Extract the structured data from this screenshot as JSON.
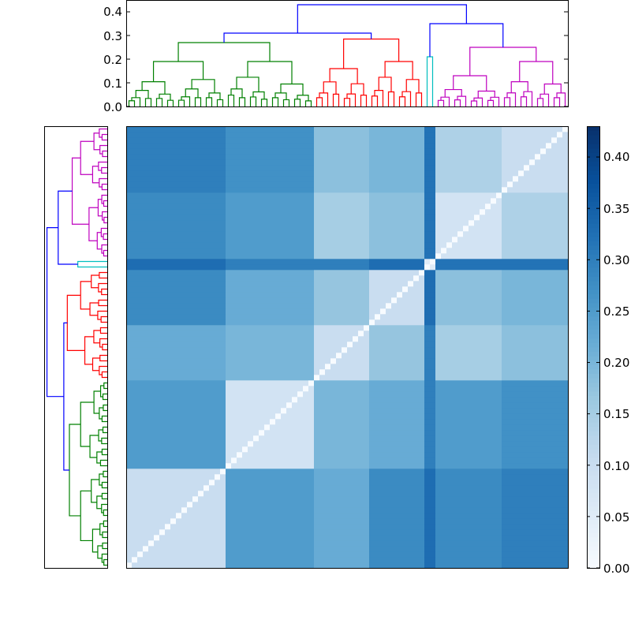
{
  "chart_data": {
    "type": "heatmap",
    "title": "",
    "colormap": "Blues",
    "value_range": [
      0.0,
      0.43
    ],
    "colorbar": {
      "ticks": [
        "0.00",
        "0.05",
        "0.10",
        "0.15",
        "0.20",
        "0.25",
        "0.30",
        "0.35",
        "0.40"
      ],
      "tick_values": [
        0,
        0.05,
        0.1,
        0.15,
        0.2,
        0.25,
        0.3,
        0.35,
        0.4
      ],
      "placement": "right"
    },
    "top_dendrogram": {
      "ticks": [
        "0.0",
        "0.1",
        "0.2",
        "0.3",
        "0.4"
      ],
      "tick_values": [
        0,
        0.1,
        0.2,
        0.3,
        0.4
      ],
      "ylim": [
        0,
        0.45
      ]
    },
    "left_dendrogram": {
      "xlim": [
        0.45,
        0
      ]
    },
    "link_color_above_threshold": "#0000ff",
    "clusters": [
      {
        "id": "G1",
        "color": "#008000",
        "leaves": 18,
        "height": 0.19
      },
      {
        "id": "G2",
        "color": "#008000",
        "leaves": 16,
        "height": 0.19
      },
      {
        "id": "R1",
        "color": "#ff0000",
        "leaves": 10,
        "height": 0.16
      },
      {
        "id": "R2",
        "color": "#ff0000",
        "leaves": 10,
        "height": 0.19
      },
      {
        "id": "C",
        "color": "#00bfbf",
        "leaves": 2,
        "height": 0.21
      },
      {
        "id": "M1",
        "color": "#bf00bf",
        "leaves": 12,
        "height": 0.13
      },
      {
        "id": "M2",
        "color": "#bf00bf",
        "leaves": 12,
        "height": 0.19
      }
    ],
    "tree": {
      "h": 0.43,
      "children": [
        {
          "h": 0.31,
          "children": [
            {
              "h": 0.27,
              "color": "#008000",
              "children": [
                {
                  "cluster": "G1"
                },
                {
                  "cluster": "G2"
                }
              ]
            },
            {
              "h": 0.285,
              "color": "#ff0000",
              "children": [
                {
                  "cluster": "R1"
                },
                {
                  "cluster": "R2"
                }
              ]
            }
          ]
        },
        {
          "h": 0.35,
          "children": [
            {
              "cluster": "C"
            },
            {
              "h": 0.25,
              "color": "#bf00bf",
              "children": [
                {
                  "cluster": "M1"
                },
                {
                  "cluster": "M2"
                }
              ]
            }
          ]
        }
      ]
    },
    "block_means": {
      "order": [
        "G1",
        "G2",
        "R1",
        "R2",
        "C",
        "M1",
        "M2"
      ],
      "values": [
        [
          0.1,
          0.25,
          0.22,
          0.28,
          0.33,
          0.28,
          0.3
        ],
        [
          0.25,
          0.08,
          0.2,
          0.22,
          0.3,
          0.25,
          0.27
        ],
        [
          0.22,
          0.2,
          0.1,
          0.17,
          0.3,
          0.15,
          0.18
        ],
        [
          0.28,
          0.22,
          0.17,
          0.1,
          0.33,
          0.18,
          0.2
        ],
        [
          0.33,
          0.3,
          0.3,
          0.33,
          0.05,
          0.32,
          0.32
        ],
        [
          0.28,
          0.25,
          0.15,
          0.18,
          0.32,
          0.08,
          0.14
        ],
        [
          0.3,
          0.27,
          0.18,
          0.2,
          0.32,
          0.14,
          0.1
        ]
      ],
      "diagonal": 0.0
    }
  }
}
